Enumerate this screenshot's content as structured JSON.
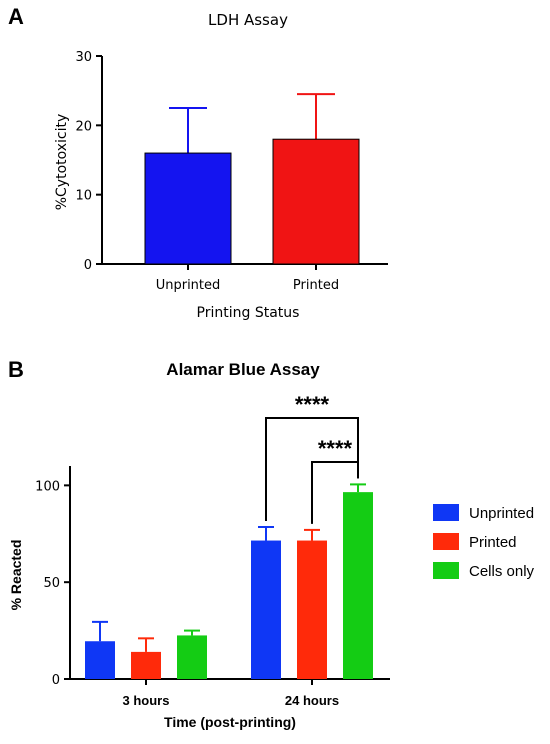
{
  "panels": {
    "a_label": "A",
    "b_label": "B"
  },
  "chart_data": [
    {
      "type": "bar",
      "title": "LDH Assay",
      "xlabel": "Printing Status",
      "ylabel": "%Cytotoxicity",
      "ylim": [
        0,
        30
      ],
      "yticks": [
        0,
        10,
        20,
        30
      ],
      "categories": [
        "Unprinted",
        "Printed"
      ],
      "values": [
        16,
        18
      ],
      "errors": [
        6.5,
        6.5
      ],
      "colors": [
        "#1414f0",
        "#f01414"
      ]
    },
    {
      "type": "bar",
      "title": "Alamar Blue Assay",
      "xlabel": "Time (post-printing)",
      "ylabel": "% Reacted",
      "ylim": [
        0,
        110
      ],
      "yticks": [
        0,
        50,
        100
      ],
      "categories": [
        "3 hours",
        "24 hours"
      ],
      "series": [
        {
          "name": "Unprinted",
          "values": [
            19.5,
            71.5
          ],
          "errors": [
            10,
            7
          ],
          "color": "#0f37f5"
        },
        {
          "name": "Printed",
          "values": [
            14,
            71.5
          ],
          "errors": [
            7,
            5.5
          ],
          "color": "#ff2a0a"
        },
        {
          "name": "Cells only",
          "values": [
            22.5,
            96.5
          ],
          "errors": [
            2.5,
            4
          ],
          "color": "#14cc14"
        }
      ],
      "legend": "right",
      "annotations": [
        {
          "text": "****",
          "from": "Unprinted 24 hours",
          "to": "Cells only 24 hours"
        },
        {
          "text": "****",
          "from": "Printed 24 hours",
          "to": "Cells only 24 hours"
        }
      ]
    }
  ]
}
